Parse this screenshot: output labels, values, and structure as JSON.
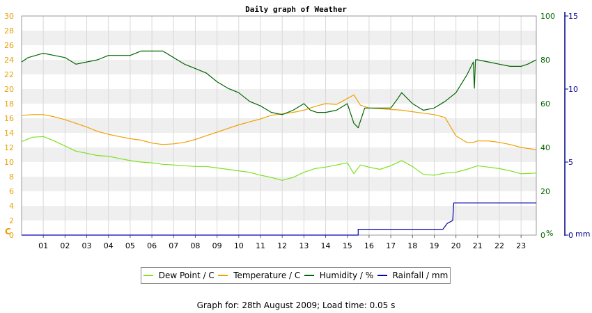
{
  "chart_data": {
    "type": "line",
    "title": "Daily graph of Weather",
    "x_ticks": [
      "01",
      "02",
      "03",
      "04",
      "05",
      "06",
      "07",
      "08",
      "09",
      "10",
      "11",
      "12",
      "13",
      "14",
      "15",
      "16",
      "17",
      "18",
      "19",
      "20",
      "21",
      "22",
      "23"
    ],
    "x_range": [
      0,
      23.7
    ],
    "left_axis": {
      "unit": "C",
      "range": [
        0,
        30
      ],
      "ticks": [
        0,
        2,
        4,
        6,
        8,
        10,
        12,
        14,
        16,
        18,
        20,
        22,
        24,
        26,
        28,
        30
      ],
      "color": "#e8a000"
    },
    "right_axis_humidity": {
      "unit": "%",
      "range": [
        0,
        100
      ],
      "ticks": [
        0,
        20,
        40,
        60,
        80,
        100
      ],
      "color": "#006400"
    },
    "right_axis_rain": {
      "unit": "mm",
      "range": [
        0,
        15
      ],
      "ticks": [
        0,
        5,
        10,
        15
      ],
      "color": "#00008b"
    },
    "grid": true,
    "legend_position": "bottom",
    "series": [
      {
        "name": "Dew Point / C",
        "axis": "temp",
        "color": "#7fe020",
        "points": [
          [
            0,
            12.8
          ],
          [
            0.5,
            13.4
          ],
          [
            1,
            13.5
          ],
          [
            1.5,
            12.9
          ],
          [
            2,
            12.2
          ],
          [
            2.5,
            11.5
          ],
          [
            3,
            11.2
          ],
          [
            3.5,
            10.9
          ],
          [
            4,
            10.8
          ],
          [
            4.5,
            10.5
          ],
          [
            5,
            10.2
          ],
          [
            5.5,
            10.0
          ],
          [
            6,
            9.9
          ],
          [
            6.5,
            9.7
          ],
          [
            7,
            9.6
          ],
          [
            7.5,
            9.5
          ],
          [
            8,
            9.4
          ],
          [
            8.5,
            9.4
          ],
          [
            9,
            9.2
          ],
          [
            9.5,
            9.0
          ],
          [
            10,
            8.8
          ],
          [
            10.5,
            8.6
          ],
          [
            11,
            8.2
          ],
          [
            11.5,
            7.9
          ],
          [
            12,
            7.5
          ],
          [
            12.5,
            7.9
          ],
          [
            13,
            8.6
          ],
          [
            13.5,
            9.1
          ],
          [
            14,
            9.3
          ],
          [
            14.5,
            9.6
          ],
          [
            15,
            9.9
          ],
          [
            15.3,
            8.4
          ],
          [
            15.6,
            9.6
          ],
          [
            16,
            9.3
          ],
          [
            16.5,
            9.0
          ],
          [
            17,
            9.5
          ],
          [
            17.5,
            10.2
          ],
          [
            18,
            9.4
          ],
          [
            18.5,
            8.3
          ],
          [
            19,
            8.2
          ],
          [
            19.5,
            8.5
          ],
          [
            20,
            8.6
          ],
          [
            20.5,
            9.0
          ],
          [
            21,
            9.5
          ],
          [
            21.5,
            9.3
          ],
          [
            22,
            9.1
          ],
          [
            22.5,
            8.8
          ],
          [
            23,
            8.4
          ],
          [
            23.7,
            8.5
          ]
        ]
      },
      {
        "name": "Temperature / C",
        "axis": "temp",
        "color": "#f0a000",
        "points": [
          [
            0,
            16.4
          ],
          [
            0.5,
            16.5
          ],
          [
            1,
            16.5
          ],
          [
            1.5,
            16.2
          ],
          [
            2,
            15.8
          ],
          [
            2.5,
            15.3
          ],
          [
            3,
            14.8
          ],
          [
            3.5,
            14.2
          ],
          [
            4,
            13.8
          ],
          [
            4.5,
            13.5
          ],
          [
            5,
            13.2
          ],
          [
            5.5,
            13.0
          ],
          [
            6,
            12.6
          ],
          [
            6.5,
            12.4
          ],
          [
            7,
            12.5
          ],
          [
            7.5,
            12.7
          ],
          [
            8,
            13.1
          ],
          [
            8.5,
            13.6
          ],
          [
            9,
            14.1
          ],
          [
            9.5,
            14.6
          ],
          [
            10,
            15.1
          ],
          [
            10.5,
            15.5
          ],
          [
            11,
            15.9
          ],
          [
            11.5,
            16.4
          ],
          [
            12,
            16.6
          ],
          [
            12.5,
            16.8
          ],
          [
            13,
            17.1
          ],
          [
            13.5,
            17.6
          ],
          [
            14,
            18.0
          ],
          [
            14.5,
            17.9
          ],
          [
            15,
            18.7
          ],
          [
            15.3,
            19.2
          ],
          [
            15.6,
            17.8
          ],
          [
            16,
            17.4
          ],
          [
            16.5,
            17.3
          ],
          [
            17,
            17.2
          ],
          [
            17.5,
            17.1
          ],
          [
            18,
            16.9
          ],
          [
            18.5,
            16.7
          ],
          [
            19,
            16.5
          ],
          [
            19.5,
            16.1
          ],
          [
            20,
            13.6
          ],
          [
            20.5,
            12.7
          ],
          [
            20.8,
            12.7
          ],
          [
            21,
            12.9
          ],
          [
            21.5,
            12.9
          ],
          [
            22,
            12.7
          ],
          [
            22.5,
            12.4
          ],
          [
            23,
            12.0
          ],
          [
            23.7,
            11.7
          ]
        ]
      },
      {
        "name": "Humidity / %",
        "axis": "humidity",
        "color": "#006400",
        "points": [
          [
            0,
            79
          ],
          [
            0.3,
            81
          ],
          [
            1,
            83
          ],
          [
            1.5,
            82
          ],
          [
            2,
            81
          ],
          [
            2.5,
            78
          ],
          [
            3,
            79
          ],
          [
            3.5,
            80
          ],
          [
            4,
            82
          ],
          [
            4.5,
            82
          ],
          [
            5,
            82
          ],
          [
            5.5,
            84
          ],
          [
            6,
            84
          ],
          [
            6.5,
            84
          ],
          [
            7,
            81
          ],
          [
            7.5,
            78
          ],
          [
            8,
            76
          ],
          [
            8.5,
            74
          ],
          [
            9,
            70
          ],
          [
            9.5,
            67
          ],
          [
            10,
            65
          ],
          [
            10.5,
            61
          ],
          [
            11,
            59
          ],
          [
            11.5,
            56
          ],
          [
            12,
            55
          ],
          [
            12.5,
            57
          ],
          [
            13,
            60
          ],
          [
            13.3,
            57
          ],
          [
            13.6,
            56
          ],
          [
            14,
            56
          ],
          [
            14.5,
            57
          ],
          [
            15,
            60
          ],
          [
            15.3,
            51
          ],
          [
            15.5,
            49
          ],
          [
            15.8,
            58
          ],
          [
            16,
            58
          ],
          [
            16.5,
            58
          ],
          [
            17,
            58
          ],
          [
            17.3,
            62
          ],
          [
            17.5,
            65
          ],
          [
            18,
            60
          ],
          [
            18.5,
            57
          ],
          [
            19,
            58
          ],
          [
            19.5,
            61
          ],
          [
            20,
            65
          ],
          [
            20.5,
            73
          ],
          [
            20.8,
            79
          ],
          [
            20.85,
            67
          ],
          [
            20.9,
            80
          ],
          [
            21,
            80
          ],
          [
            21.5,
            79
          ],
          [
            22,
            78
          ],
          [
            22.5,
            77
          ],
          [
            23,
            77
          ],
          [
            23.3,
            78
          ],
          [
            23.7,
            80
          ]
        ]
      },
      {
        "name": "Rainfall / mm",
        "axis": "rain",
        "color": "#0000b0",
        "points": [
          [
            0,
            0
          ],
          [
            15.5,
            0
          ],
          [
            15.5,
            0.4
          ],
          [
            19.4,
            0.4
          ],
          [
            19.6,
            0.8
          ],
          [
            19.85,
            1.0
          ],
          [
            19.9,
            2.2
          ],
          [
            20,
            2.2
          ],
          [
            23.7,
            2.2
          ]
        ]
      }
    ]
  },
  "footer": "Graph for: 28th August 2009; Load time: 0.05 s"
}
